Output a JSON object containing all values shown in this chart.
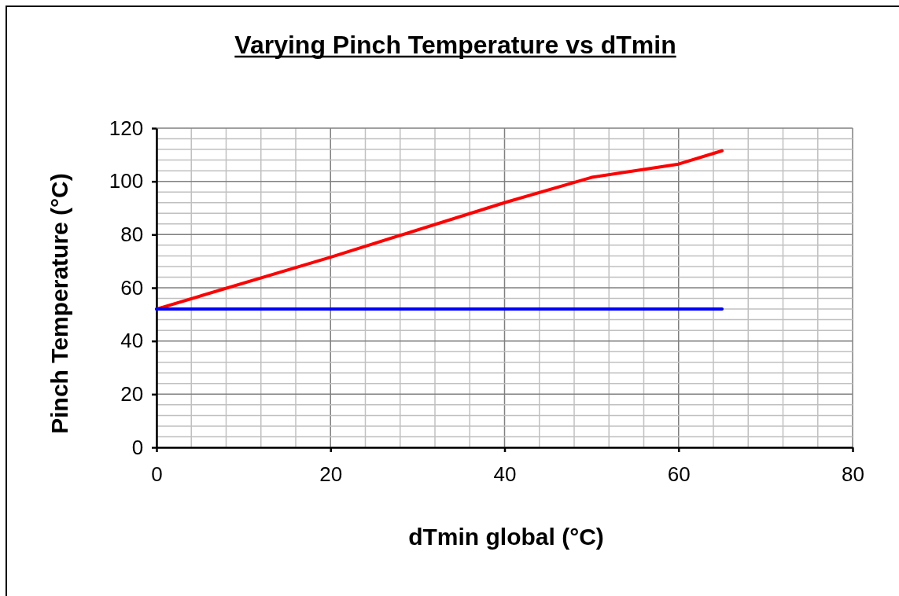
{
  "chart_data": {
    "type": "line",
    "title": "Varying Pinch Temperature vs dTmin",
    "xlabel": "dTmin global (°C)",
    "ylabel": "Pinch Temperature (°C)",
    "x": [
      0,
      20,
      40,
      50,
      60,
      65
    ],
    "series": [
      {
        "color": "#ff0000",
        "values": [
          52,
          71.5,
          92,
          101.5,
          106.5,
          111.5
        ]
      },
      {
        "color": "#0000ff",
        "x": [
          0,
          65
        ],
        "values": [
          52,
          52
        ]
      }
    ],
    "xlim": [
      0,
      80
    ],
    "xticks": [
      0,
      20,
      40,
      60,
      80
    ],
    "ylim": [
      0,
      120
    ],
    "yticks": [
      0,
      20,
      40,
      60,
      80,
      100,
      120
    ],
    "grid": true,
    "marker": "none",
    "line_style": "solid"
  }
}
